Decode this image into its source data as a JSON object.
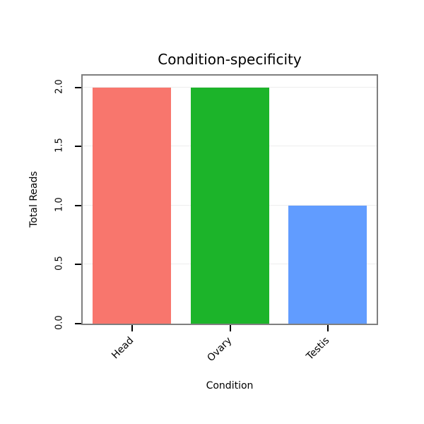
{
  "chart_data": {
    "type": "bar",
    "title": "Condition-specificity",
    "xlabel": "Condition",
    "ylabel": "Total Reads",
    "categories": [
      "Head",
      "Ovary",
      "Testis"
    ],
    "values": [
      2,
      2,
      1
    ],
    "colors": [
      "#F8766D",
      "#1CB42A",
      "#619CFF"
    ],
    "ylim": [
      0,
      2.1
    ],
    "yticks": [
      0,
      0.5,
      1,
      1.5,
      2
    ],
    "ytick_labels": [
      "0.0",
      "0.5",
      "1.0",
      "1.5",
      "2.0"
    ],
    "grid": true,
    "legend": "none",
    "border_color": "#7f7f7f",
    "grid_color": "#ededed"
  }
}
